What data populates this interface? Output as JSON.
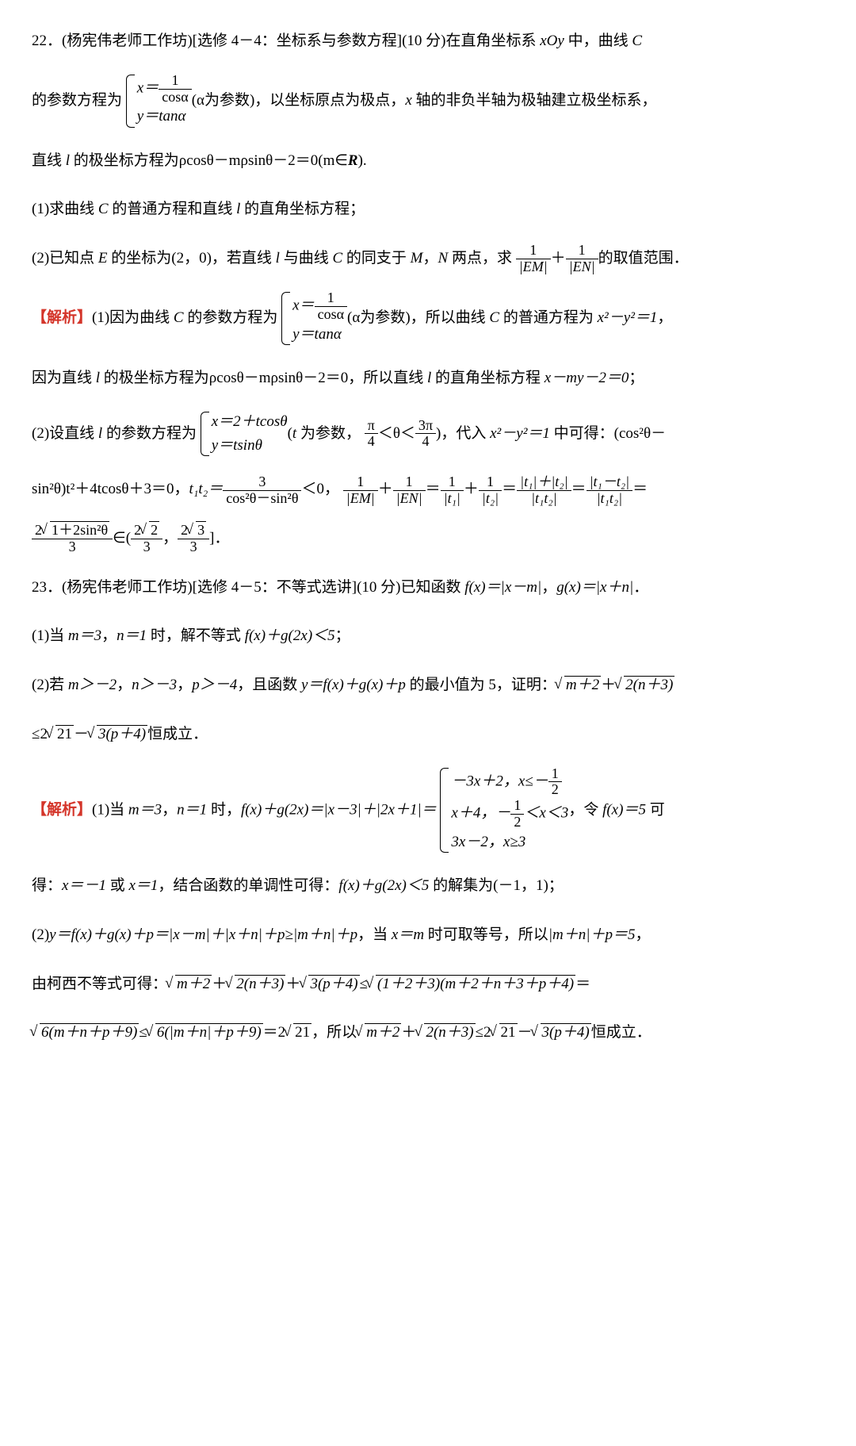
{
  "q22": {
    "number": "22．",
    "source": "(杨宪伟老师工作坊)[选修 4－4：坐标系与参数方程](10 分)",
    "intro_a": "在直角坐标系 ",
    "xoy": "xOy",
    "intro_b": " 中，曲线 ",
    "C": "C",
    "param_prefix": "的参数方程为",
    "case_x": "x＝",
    "case_x_num": "1",
    "case_x_den": "cosα",
    "case_y": "y＝tanα",
    "alpha_note": "(α为参数)",
    "after_case": "，以坐标原点为极点，",
    "x_label": "x",
    "after_case2": " 轴的非负半轴为极轴建立极坐标系，",
    "line_l_prefix": "直线 ",
    "l": "l",
    "line_l_eq": " 的极坐标方程为ρcosθ－mρsinθ－2＝0(m∈",
    "R": "R",
    "line_l_end": ").",
    "part1": "(1)求曲线 ",
    "part1_mid": " 的普通方程和直线 ",
    "part1_end": " 的直角坐标方程；",
    "part2_a": "(2)已知点 ",
    "E": "E",
    "part2_b": " 的坐标为(2，0)，若直线 ",
    "part2_c": " 与曲线 ",
    "part2_d": " 的同支于 ",
    "M": "M",
    "part2_e": "，",
    "N": "N",
    "part2_f": " 两点，求",
    "frac1_num": "1",
    "frac1_den": "|EM|",
    "plus": "＋",
    "frac2_num": "1",
    "frac2_den": "|EN|",
    "part2_end": "的取值范围．"
  },
  "a22": {
    "label": "【解析】",
    "p1_a": "(1)因为曲线 ",
    "p1_b": " 的参数方程为",
    "p1_c": "，所以曲线 ",
    "p1_d": " 的普通方程为 ",
    "eq_curve": "x²－y²＝1",
    "p1_e": "，",
    "p2_a": "因为直线 ",
    "p2_b": " 的极坐标方程为ρcosθ－mρsinθ－2＝0，所以直线 ",
    "p2_c": " 的直角坐标方程 ",
    "eq_line": "x－my－2＝0",
    "p2_d": "；",
    "p3_a": "(2)设直线 ",
    "p3_b": " 的参数方程为",
    "case2_x": "x＝2＋tcosθ",
    "case2_y": "y＝tsinθ",
    "p3_c": "(",
    "t": "t",
    "p3_d": " 为参数，",
    "pi4": "π",
    "four": "4",
    "lt": "＜θ＜",
    "three_pi": "3π",
    "p3_e": ")，代入 ",
    "p3_f": " 中可得：(cos²θ－",
    "p4_a": "sin²θ)t²＋4tcosθ＋3＝0，",
    "t1t2": "t₁t₂＝",
    "three": "3",
    "cos2_sin2": "cos²θ－sin²θ",
    "lt0": "＜0，",
    "eq_chain_1": "＝",
    "t1": "|t₁|",
    "t2": "|t₂|",
    "t1_plus_t2": "|t₁|＋|t₂|",
    "t1t2_abs": "|t₁t₂|",
    "t1_minus_t2": "|t₁－t₂|",
    "eq": "＝",
    "result_num_2": "2",
    "result_rad": "1＋2sin²θ",
    "result_den": "3",
    "in": "∈(",
    "r1_num_2": "2",
    "r1_rad": "2",
    "r1_den": "3",
    "comma": "，",
    "r2_num_2": "2",
    "r2_rad": "3",
    "r2_den": "3",
    "bracket": "]．"
  },
  "q23": {
    "number": "23．",
    "source": "(杨宪伟老师工作坊)[选修 4－5：不等式选讲](10 分)",
    "intro": "已知函数 ",
    "fx": "f(x)＝|x－m|",
    "comma": "，",
    "gx": "g(x)＝|x＋n|",
    "period": "．",
    "p1": "(1)当 ",
    "m3": "m＝3",
    "n1": "n＝1",
    "p1_b": " 时，解不等式 ",
    "ineq": "f(x)＋g(2x)＜5",
    "semicolon": "；",
    "p2_a": "(2)若 ",
    "m_gt": "m＞－2",
    "n_gt": "n＞－3",
    "p_gt": "p＞－4",
    "p2_b": "，且函数 ",
    "y_eq": "y＝f(x)＋g(x)＋p",
    "p2_c": " 的最小值为 5，证明：",
    "sqrt1": "m＋2",
    "plus": "＋",
    "sqrt2": "2(n＋3)",
    "le": "≤",
    "two": "2",
    "sqrt21": "21",
    "minus": "－",
    "sqrt3p": "3(p＋4)",
    "p2_end": "恒成立．"
  },
  "a23": {
    "label": "【解析】",
    "p1_a": "(1)当 ",
    "p1_b": " 时，",
    "fx_g2x": "f(x)＋g(2x)＝|x－3|＋|2x＋1|＝",
    "case1": "－3x＋2，x≤－",
    "half_num": "1",
    "half_den": "2",
    "case2_a": "x＋4，－",
    "case2_b": "＜x＜3",
    "case3": "3x－2，x≥3",
    "p1_c": "，令 ",
    "fx5": "f(x)＝5",
    "p1_d": " 可",
    "p2_a": "得：",
    "x_neg1": "x＝－1",
    "or": " 或 ",
    "x_1": "x＝1",
    "p2_b": "，结合函数的单调性可得：",
    "ineq": "f(x)＋g(2x)＜5",
    "p2_c": " 的解集为(－1，1)；",
    "p3_a": "(2)",
    "y_expand": "y＝f(x)＋g(x)＋p＝|x－m|＋|x＋n|＋p≥|m＋n|＋p",
    "p3_b": "，当 ",
    "x_eq_m": "x＝m",
    "p3_c": " 时可取等号，所以",
    "mn_p_5": "|m＋n|＋p＝5",
    "p3_d": "，",
    "p4_a": "由柯西不等式可得：",
    "sqrt_m2": "m＋2",
    "sqrt_2n3": "2(n＋3)",
    "sqrt_3p4": "3(p＋4)",
    "sqrt_prod": "(1＋2＋3)(m＋2＋n＋3＋p＋4)",
    "p5_rad1": "6(m＋n＋p＋9)",
    "p5_rad2": "6(|m＋n|＋p＋9)",
    "eq_2": "＝2",
    "rad21": "21",
    "p5_b": "，所以",
    "p5_end": "恒成立．"
  }
}
